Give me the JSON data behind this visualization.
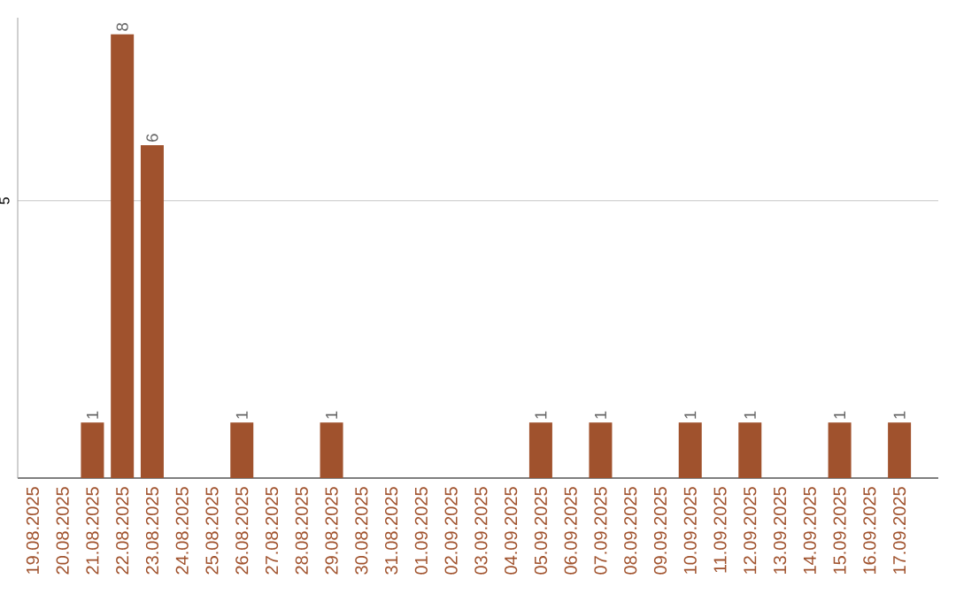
{
  "chart_data": {
    "type": "bar",
    "categories": [
      "19.08.2025",
      "20.08.2025",
      "21.08.2025",
      "22.08.2025",
      "23.08.2025",
      "24.08.2025",
      "25.08.2025",
      "26.08.2025",
      "27.08.2025",
      "28.08.2025",
      "29.08.2025",
      "30.08.2025",
      "31.08.2025",
      "01.09.2025",
      "02.09.2025",
      "03.09.2025",
      "04.09.2025",
      "05.09.2025",
      "06.09.2025",
      "07.09.2025",
      "08.09.2025",
      "09.09.2025",
      "10.09.2025",
      "11.09.2025",
      "12.09.2025",
      "13.09.2025",
      "14.09.2025",
      "15.09.2025",
      "16.09.2025",
      "17.09.2025"
    ],
    "values": [
      0,
      0,
      1,
      8,
      6,
      0,
      0,
      1,
      0,
      0,
      1,
      0,
      0,
      0,
      0,
      0,
      0,
      1,
      0,
      1,
      0,
      0,
      1,
      0,
      1,
      0,
      0,
      1,
      0,
      1
    ],
    "color": "#a0522d",
    "value_labels": [
      null,
      null,
      "1",
      "8",
      "6",
      null,
      null,
      "1",
      null,
      null,
      "1",
      null,
      null,
      null,
      null,
      null,
      null,
      "1",
      null,
      "1",
      null,
      null,
      "1",
      null,
      "1",
      null,
      null,
      "1",
      null,
      "1"
    ],
    "ylim": [
      0,
      8.3
    ],
    "yticks": [
      5
    ],
    "grid": "y"
  }
}
